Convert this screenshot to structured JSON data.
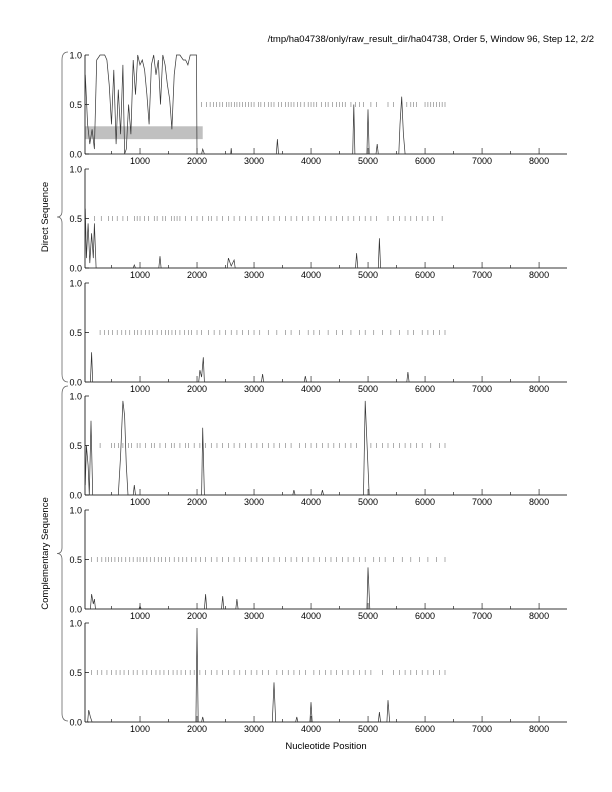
{
  "chart_data": {
    "type": "line",
    "title": "/tmp/ha04738/only/raw_result_dir/ha04738, Order 5, Window 96, Step 12, 2/2",
    "xlabel": "Nucleotide Position",
    "xlim": [
      35,
      8490
    ],
    "ylim": [
      0,
      1
    ],
    "x_ticks": [
      1000,
      2000,
      3000,
      4000,
      5000,
      6000,
      7000,
      8000
    ],
    "y_ticks": [
      "0.0",
      "0.5",
      "1.0"
    ],
    "groups": [
      {
        "label": "Direct Sequence",
        "panels": [
          0,
          1,
          2
        ]
      },
      {
        "label": "Complementary Sequence",
        "panels": [
          3,
          4,
          5
        ]
      }
    ],
    "highlight": {
      "panel": 0,
      "x": [
        40,
        2100
      ],
      "y": [
        0.15,
        0.28
      ]
    },
    "panels": [
      {
        "trace": [
          [
            40,
            0.8
          ],
          [
            80,
            0.3
          ],
          [
            120,
            0.1
          ],
          [
            160,
            0.25
          ],
          [
            200,
            0.05
          ],
          [
            240,
            0.95
          ],
          [
            300,
            1.0
          ],
          [
            380,
            1.0
          ],
          [
            420,
            0.95
          ],
          [
            460,
            0.7
          ],
          [
            500,
            0.3
          ],
          [
            540,
            0.85
          ],
          [
            580,
            0.1
          ],
          [
            620,
            0.65
          ],
          [
            660,
            0.2
          ],
          [
            700,
            0.9
          ],
          [
            730,
            0.0
          ],
          [
            760,
            0.05
          ],
          [
            800,
            0.5
          ],
          [
            840,
            0.2
          ],
          [
            880,
            0.95
          ],
          [
            920,
            0.6
          ],
          [
            960,
            1.0
          ],
          [
            1000,
            0.9
          ],
          [
            1040,
            0.95
          ],
          [
            1080,
            0.85
          ],
          [
            1120,
            0.6
          ],
          [
            1160,
            0.3
          ],
          [
            1200,
            0.9
          ],
          [
            1240,
            1.0
          ],
          [
            1280,
            0.8
          ],
          [
            1320,
            0.95
          ],
          [
            1360,
            0.5
          ],
          [
            1400,
            1.0
          ],
          [
            1440,
            0.9
          ],
          [
            1480,
            0.7
          ],
          [
            1520,
            0.55
          ],
          [
            1560,
            0.25
          ],
          [
            1600,
            0.8
          ],
          [
            1640,
            1.0
          ],
          [
            1700,
            1.0
          ],
          [
            1760,
            0.95
          ],
          [
            1800,
            0.95
          ],
          [
            1840,
            0.9
          ],
          [
            1880,
            1.0
          ],
          [
            1990,
            1.0
          ],
          [
            2000,
            0.0
          ],
          [
            2080,
            0.0
          ],
          [
            2100,
            0.05
          ],
          [
            2130,
            0.0
          ],
          [
            2590,
            0.0
          ],
          [
            2600,
            0.06
          ],
          [
            2610,
            0.0
          ],
          [
            3390,
            0.0
          ],
          [
            3410,
            0.15
          ],
          [
            3430,
            0.0
          ],
          [
            4730,
            0.0
          ],
          [
            4750,
            0.5
          ],
          [
            4770,
            0.0
          ],
          [
            4980,
            0.0
          ],
          [
            5000,
            0.45
          ],
          [
            5020,
            0.0
          ],
          [
            5140,
            0.0
          ],
          [
            5160,
            0.1
          ],
          [
            5180,
            0.0
          ],
          [
            5540,
            0.0
          ],
          [
            5560,
            0.3
          ],
          [
            5590,
            0.58
          ],
          [
            5620,
            0.2
          ],
          [
            5650,
            0.0
          ],
          [
            8490,
            0.0
          ]
        ],
        "ticks": [
          2080,
          2170,
          2230,
          2290,
          2340,
          2400,
          2450,
          2520,
          2560,
          2600,
          2660,
          2700,
          2750,
          2800,
          2850,
          2900,
          2950,
          3000,
          3080,
          3120,
          3180,
          3250,
          3300,
          3350,
          3430,
          3480,
          3550,
          3600,
          3650,
          3700,
          3760,
          3820,
          3880,
          3950,
          4000,
          4050,
          4100,
          4180,
          4250,
          4300,
          4380,
          4450,
          4500,
          4550,
          4600,
          4700,
          4780,
          4850,
          4920,
          5050,
          5150,
          5350,
          5450,
          5680,
          5750,
          5800,
          5850,
          6000,
          6050,
          6100,
          6150,
          6200,
          6250,
          6300,
          6350
        ]
      },
      {
        "trace": [
          [
            40,
            0.6
          ],
          [
            60,
            0.1
          ],
          [
            90,
            0.45
          ],
          [
            120,
            0.05
          ],
          [
            150,
            0.35
          ],
          [
            180,
            0.1
          ],
          [
            200,
            0.45
          ],
          [
            230,
            0.0
          ],
          [
            880,
            0.0
          ],
          [
            900,
            0.03
          ],
          [
            920,
            0.0
          ],
          [
            1330,
            0.0
          ],
          [
            1350,
            0.12
          ],
          [
            1370,
            0.0
          ],
          [
            2530,
            0.0
          ],
          [
            2550,
            0.1
          ],
          [
            2600,
            0.02
          ],
          [
            2650,
            0.08
          ],
          [
            2670,
            0.0
          ],
          [
            4780,
            0.0
          ],
          [
            4800,
            0.15
          ],
          [
            4820,
            0.0
          ],
          [
            5180,
            0.0
          ],
          [
            5200,
            0.3
          ],
          [
            5220,
            0.0
          ],
          [
            8490,
            0.0
          ]
        ],
        "ticks": [
          200,
          320,
          450,
          520,
          600,
          700,
          780,
          900,
          950,
          1000,
          1080,
          1150,
          1250,
          1300,
          1400,
          1450,
          1550,
          1600,
          1650,
          1700,
          1800,
          1900,
          2000,
          2100,
          2200,
          2250,
          2350,
          2450,
          2550,
          2650,
          2750,
          2850,
          2950,
          3050,
          3150,
          3250,
          3350,
          3450,
          3550,
          3650,
          3750,
          3850,
          3950,
          4050,
          4150,
          4250,
          4350,
          4450,
          4550,
          4650,
          4750,
          4850,
          4950,
          5050,
          5150,
          5350,
          5450,
          5550,
          5650,
          5750,
          5850,
          5950,
          6050,
          6150,
          6300
        ]
      },
      {
        "trace": [
          [
            40,
            0.0
          ],
          [
            130,
            0.0
          ],
          [
            150,
            0.3
          ],
          [
            170,
            0.0
          ],
          [
            2030,
            0.0
          ],
          [
            2050,
            0.12
          ],
          [
            2080,
            0.05
          ],
          [
            2110,
            0.25
          ],
          [
            2130,
            0.0
          ],
          [
            3130,
            0.0
          ],
          [
            3150,
            0.08
          ],
          [
            3170,
            0.0
          ],
          [
            3880,
            0.0
          ],
          [
            3900,
            0.06
          ],
          [
            3920,
            0.0
          ],
          [
            5680,
            0.0
          ],
          [
            5700,
            0.1
          ],
          [
            5720,
            0.0
          ],
          [
            8490,
            0.0
          ]
        ],
        "ticks": [
          300,
          380,
          450,
          520,
          600,
          680,
          750,
          820,
          900,
          960,
          1020,
          1100,
          1160,
          1220,
          1300,
          1380,
          1450,
          1500,
          1560,
          1620,
          1700,
          1780,
          1850,
          1900,
          2000,
          2080,
          2200,
          2300,
          2400,
          2500,
          2600,
          2700,
          2800,
          2900,
          3000,
          3100,
          3250,
          3400,
          3550,
          3650,
          3800,
          3950,
          4050,
          4150,
          4300,
          4450,
          4550,
          4700,
          4850,
          4950,
          5100,
          5250,
          5400,
          5550,
          5700,
          5800,
          5950,
          6050,
          6150,
          6250,
          6350
        ]
      },
      {
        "trace": [
          [
            40,
            0.1
          ],
          [
            60,
            0.5
          ],
          [
            90,
            0.3
          ],
          [
            110,
            0.0
          ],
          [
            140,
            0.75
          ],
          [
            170,
            0.0
          ],
          [
            620,
            0.0
          ],
          [
            660,
            0.4
          ],
          [
            700,
            0.95
          ],
          [
            730,
            0.8
          ],
          [
            760,
            0.3
          ],
          [
            790,
            0.0
          ],
          [
            880,
            0.0
          ],
          [
            900,
            0.1
          ],
          [
            920,
            0.0
          ],
          [
            2080,
            0.0
          ],
          [
            2100,
            0.68
          ],
          [
            2130,
            0.0
          ],
          [
            3680,
            0.0
          ],
          [
            3700,
            0.05
          ],
          [
            3720,
            0.0
          ],
          [
            4180,
            0.0
          ],
          [
            4200,
            0.05
          ],
          [
            4220,
            0.0
          ],
          [
            4920,
            0.0
          ],
          [
            4950,
            0.95
          ],
          [
            4990,
            0.4
          ],
          [
            5020,
            0.0
          ],
          [
            8490,
            0.0
          ]
        ],
        "ticks": [
          300,
          500,
          550,
          620,
          700,
          800,
          850,
          950,
          1000,
          1100,
          1200,
          1250,
          1350,
          1450,
          1550,
          1600,
          1700,
          1800,
          1850,
          1950,
          2050,
          2150,
          2250,
          2350,
          2450,
          2550,
          2650,
          2750,
          2850,
          2950,
          3050,
          3150,
          3250,
          3350,
          3450,
          3550,
          3650,
          3800,
          3900,
          4000,
          4100,
          4200,
          4300,
          4400,
          4500,
          4600,
          4700,
          4800,
          5050,
          5150,
          5250,
          5350,
          5450,
          5550,
          5650,
          5750,
          5850,
          5950,
          6100,
          6250,
          6350
        ]
      },
      {
        "trace": [
          [
            40,
            0.0
          ],
          [
            130,
            0.0
          ],
          [
            150,
            0.15
          ],
          [
            180,
            0.05
          ],
          [
            200,
            0.1
          ],
          [
            220,
            0.0
          ],
          [
            980,
            0.0
          ],
          [
            1000,
            0.03
          ],
          [
            1020,
            0.0
          ],
          [
            2130,
            0.0
          ],
          [
            2150,
            0.15
          ],
          [
            2170,
            0.0
          ],
          [
            2430,
            0.0
          ],
          [
            2450,
            0.13
          ],
          [
            2470,
            0.0
          ],
          [
            2680,
            0.0
          ],
          [
            2700,
            0.1
          ],
          [
            2720,
            0.0
          ],
          [
            4980,
            0.0
          ],
          [
            5000,
            0.42
          ],
          [
            5030,
            0.0
          ],
          [
            8490,
            0.0
          ]
        ],
        "ticks": [
          150,
          250,
          330,
          400,
          450,
          500,
          560,
          620,
          680,
          750,
          820,
          880,
          950,
          1000,
          1060,
          1120,
          1180,
          1250,
          1320,
          1380,
          1450,
          1520,
          1600,
          1680,
          1750,
          1820,
          1900,
          1980,
          2060,
          2150,
          2250,
          2350,
          2450,
          2550,
          2650,
          2750,
          2850,
          2950,
          3050,
          3150,
          3250,
          3350,
          3450,
          3550,
          3650,
          3750,
          3850,
          3950,
          4050,
          4150,
          4250,
          4350,
          4450,
          4550,
          4650,
          4750,
          4850,
          4950,
          5100,
          5200,
          5300,
          5450,
          5600,
          5750,
          5900,
          6050,
          6200,
          6350
        ]
      },
      {
        "trace": [
          [
            40,
            0.0
          ],
          [
            80,
            0.0
          ],
          [
            100,
            0.12
          ],
          [
            130,
            0.05
          ],
          [
            160,
            0.0
          ],
          [
            1980,
            0.0
          ],
          [
            2000,
            0.95
          ],
          [
            2020,
            0.0
          ],
          [
            2080,
            0.0
          ],
          [
            2100,
            0.05
          ],
          [
            2120,
            0.0
          ],
          [
            3320,
            0.0
          ],
          [
            3350,
            0.4
          ],
          [
            3380,
            0.0
          ],
          [
            3730,
            0.0
          ],
          [
            3750,
            0.05
          ],
          [
            3770,
            0.0
          ],
          [
            3980,
            0.0
          ],
          [
            4000,
            0.2
          ],
          [
            4020,
            0.0
          ],
          [
            5180,
            0.0
          ],
          [
            5200,
            0.1
          ],
          [
            5220,
            0.0
          ],
          [
            5330,
            0.0
          ],
          [
            5350,
            0.22
          ],
          [
            5380,
            0.0
          ],
          [
            8490,
            0.0
          ]
        ],
        "ticks": [
          150,
          250,
          330,
          420,
          500,
          580,
          650,
          720,
          800,
          880,
          950,
          1050,
          1120,
          1200,
          1280,
          1350,
          1420,
          1500,
          1580,
          1650,
          1720,
          1800,
          1880,
          1950,
          2050,
          2150,
          2250,
          2350,
          2450,
          2550,
          2650,
          2750,
          2850,
          2950,
          3050,
          3150,
          3250,
          3400,
          3500,
          3600,
          3700,
          3800,
          3900,
          4050,
          4150,
          4250,
          4350,
          4450,
          4550,
          4650,
          4750,
          4850,
          4950,
          5050,
          5250,
          5450,
          5550,
          5650,
          5750,
          5850,
          5950,
          6050,
          6150,
          6250,
          6350
        ]
      }
    ]
  }
}
